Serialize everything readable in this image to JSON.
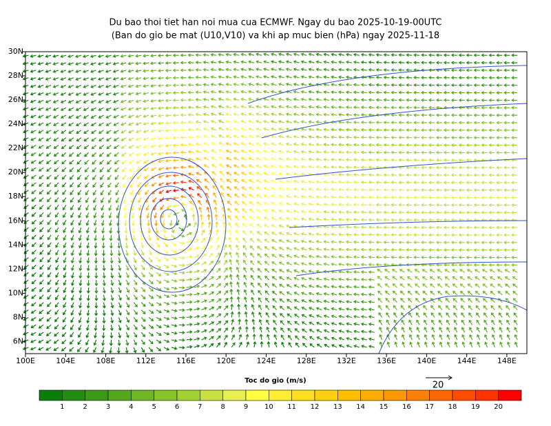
{
  "header": {
    "title_line1": "Du bao thoi tiet han noi mua cua ECMWF. Ngay du bao 2025-10-19-00UTC",
    "title_line2": "(Ban do gio be mat (U10,V10) va khi ap muc bien (hPa) ngay 2025-11-18"
  },
  "map": {
    "lon_range": [
      100,
      150
    ],
    "lat_range": [
      5,
      30
    ],
    "lon_ticks": [
      {
        "value": 100,
        "label": "100E"
      },
      {
        "value": 104,
        "label": "104E"
      },
      {
        "value": 108,
        "label": "108E"
      },
      {
        "value": 112,
        "label": "112E"
      },
      {
        "value": 116,
        "label": "116E"
      },
      {
        "value": 120,
        "label": "120E"
      },
      {
        "value": 124,
        "label": "124E"
      },
      {
        "value": 128,
        "label": "128E"
      },
      {
        "value": 132,
        "label": "132E"
      },
      {
        "value": 136,
        "label": "136E"
      },
      {
        "value": 140,
        "label": "140E"
      },
      {
        "value": 144,
        "label": "144E"
      },
      {
        "value": 148,
        "label": "148E"
      }
    ],
    "lat_ticks": [
      {
        "value": 30,
        "label": "30N"
      },
      {
        "value": 28,
        "label": "28N"
      },
      {
        "value": 26,
        "label": "26N"
      },
      {
        "value": 24,
        "label": "24N"
      },
      {
        "value": 22,
        "label": "22N"
      },
      {
        "value": 20,
        "label": "20N"
      },
      {
        "value": 18,
        "label": "18N"
      },
      {
        "value": 16,
        "label": "16N"
      },
      {
        "value": 14,
        "label": "14N"
      },
      {
        "value": 12,
        "label": "12N"
      },
      {
        "value": 10,
        "label": "10N"
      },
      {
        "value": 8,
        "label": "8N"
      },
      {
        "value": 6,
        "label": "6N"
      }
    ]
  },
  "colorbar": {
    "title": "Toc do gio (m/s)",
    "ticks": [
      1,
      2,
      3,
      4,
      5,
      6,
      7,
      8,
      9,
      10,
      11,
      12,
      13,
      14,
      15,
      16,
      17,
      18,
      19,
      20
    ],
    "colors": [
      "#0a7d0a",
      "#238c12",
      "#3c9a18",
      "#55a81e",
      "#6eb624",
      "#87c42a",
      "#a0d230",
      "#c8e040",
      "#e8f050",
      "#ffff40",
      "#ffee30",
      "#ffe020",
      "#ffd010",
      "#ffbf00",
      "#ffad00",
      "#ff9800",
      "#ff8000",
      "#ff6600",
      "#ff4c00",
      "#ff3300",
      "#ff0000"
    ]
  },
  "reference_vector": {
    "label": "20"
  }
}
